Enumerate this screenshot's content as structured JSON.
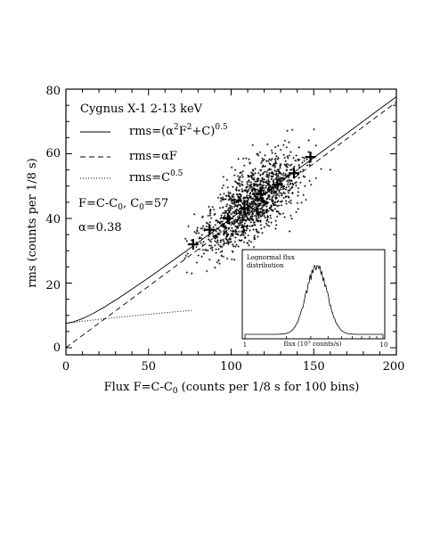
{
  "chart_data": {
    "type": "scatter",
    "xlabel_main": "Flux F=C-C",
    "xlabel_sub": "0",
    "xlabel_rest": " (counts per 1/8 s for 100 bins)",
    "ylabel": "rms (counts per 1/8 s)",
    "xlim": [
      0,
      200
    ],
    "ylim": [
      0,
      80
    ],
    "xticks": [
      "0",
      "50",
      "100",
      "150",
      "200"
    ],
    "yticks": [
      "0",
      "20",
      "40",
      "60",
      "80"
    ],
    "params": {
      "alpha": 0.38,
      "C0": 57
    },
    "annotations": {
      "title": "Cygnus X-1 2-13 keV",
      "l1_pre": "rms=(α",
      "l1_sup1": "2",
      "l1_mid": "F",
      "l1_sup2": "2",
      "l1_post": "+C)",
      "l1_sup3": "0.5",
      "l2": "rms=αF",
      "l3_pre": "rms=C",
      "l3_sup": "0.5",
      "def_pre": "F=C-C",
      "def_sub1": "0",
      "def_mid": ", C",
      "def_sub2": "0",
      "def_post": "=57",
      "alpha_text": "α=0.38"
    },
    "binned_means": [
      {
        "x": 77,
        "y": 32
      },
      {
        "x": 87,
        "y": 36.5
      },
      {
        "x": 98,
        "y": 40
      },
      {
        "x": 108,
        "y": 43
      },
      {
        "x": 118,
        "y": 47.5
      },
      {
        "x": 128,
        "y": 50.5
      },
      {
        "x": 138,
        "y": 54
      },
      {
        "x": 148,
        "y": 59
      }
    ],
    "scatter_cloud": {
      "x_range": [
        72,
        160
      ],
      "y_range": [
        22,
        80
      ],
      "approx_points": 1300
    },
    "inset": {
      "title_line1": "Lognormal flux",
      "title_line2": "distribution",
      "xlabel_pre": "flux (10",
      "xlabel_sup": "3",
      "xlabel_post": " counts/s)",
      "xtick_left": "1",
      "xtick_right": "10",
      "log_peak": 0.52,
      "log_sigma": 0.075
    }
  }
}
